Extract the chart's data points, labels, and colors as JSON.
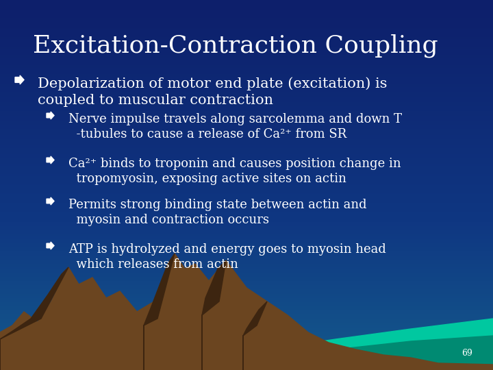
{
  "title": "Excitation-Contraction Coupling",
  "title_fontsize": 26,
  "title_color": "#FFFFFF",
  "bg_top_color": "#0d1f6b",
  "text_color": "#FFFFFF",
  "page_number": "69",
  "main_bullet": "Depolarization of motor end plate (excitation) is\ncoupled to muscular contraction",
  "sub_bullets": [
    "Nerve impulse travels along sarcolemma and down T\n  -tubules to cause a release of Ca²⁺ from SR",
    "Ca²⁺ binds to troponin and causes position change in\n  tropomyosin, exposing active sites on actin",
    "Permits strong binding state between actin and\n  myosin and contraction occurs",
    "ATP is hydrolyzed and energy goes to myosin head\n  which releases from actin"
  ],
  "main_bullet_fontsize": 15,
  "sub_bullet_fontsize": 13,
  "mountain_color": "#6b4520",
  "mountain_dark": "#3d2510",
  "mountain_mid": "#4a3018",
  "teal_color": "#00c8a0",
  "teal_dark": "#008a72",
  "water_color": "#0090a0"
}
